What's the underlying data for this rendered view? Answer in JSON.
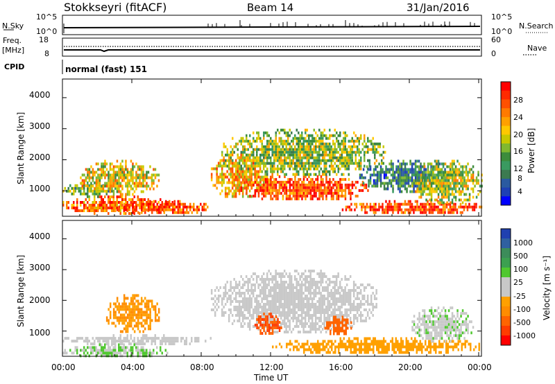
{
  "header": {
    "station": "Stokkseyri (fitACF)",
    "beam": "Beam 14",
    "date": "31/Jan/2016"
  },
  "noise_panel": {
    "left_label": "N.Sky",
    "right_label": "N.Search",
    "left_ticks": [
      "10^5",
      "10^0"
    ],
    "right_ticks": [
      "10^5",
      "10^0"
    ]
  },
  "freq_panel": {
    "left_label_1": "Freq.",
    "left_label_2": "[MHz]",
    "right_label": "Nave",
    "left_ticks": [
      "18",
      "8"
    ],
    "right_ticks": [
      "60",
      "0"
    ]
  },
  "cpid_panel": {
    "label": "CPID",
    "value": "normal (fast) 151"
  },
  "axes": {
    "ylabel": "Slant Range [km]",
    "xlabel": "Time UT",
    "yticks": [
      "1000",
      "2000",
      "3000",
      "4000"
    ],
    "xticks": [
      "00:00",
      "04:00",
      "08:00",
      "12:00",
      "16:00",
      "20:00",
      "00:00"
    ]
  },
  "colorbars": {
    "power": {
      "label": "Power [dB]",
      "ticks": [
        "28",
        "24",
        "20",
        "16",
        "12",
        "8",
        "4"
      ],
      "colors": [
        "#ff0000",
        "#ff2a00",
        "#ff5000",
        "#ff7a00",
        "#ffa000",
        "#ffc800",
        "#c8c800",
        "#80b830",
        "#3c8c3c",
        "#3a9a60",
        "#3c7a50",
        "#2a5aa0",
        "#1e40b4",
        "#0000ff"
      ]
    },
    "velocity": {
      "label": "Velocity [m s⁻¹]",
      "ticks": [
        "1000",
        "500",
        "100",
        "25",
        "-25",
        "-100",
        "-500",
        "-1000"
      ],
      "colors": [
        "#2040b0",
        "#3060a0",
        "#3c8c5a",
        "#3ca050",
        "#50c830",
        "#c8c8c8",
        "#c8c8c8",
        "#ffa000",
        "#ff8c00",
        "#ff6400",
        "#ff3c00",
        "#ff0000"
      ]
    }
  },
  "chart_data": [
    {
      "type": "heatmap",
      "panel": "power",
      "x_unit": "hours UT",
      "y_unit": "km",
      "xlim": [
        0,
        24
      ],
      "ylim": [
        180,
        4600
      ],
      "blobs": [
        {
          "t0": 0.0,
          "t1": 6.5,
          "r0": 300,
          "r1": 850,
          "value": 26
        },
        {
          "t0": 0.0,
          "t1": 3.0,
          "r0": 850,
          "r1": 1300,
          "value": 14
        },
        {
          "t0": 1.0,
          "t1": 5.5,
          "r0": 900,
          "r1": 2000,
          "value": 20
        },
        {
          "t0": 3.0,
          "t1": 8.5,
          "r0": 300,
          "r1": 700,
          "value": 28
        },
        {
          "t0": 8.5,
          "t1": 12.0,
          "r0": 800,
          "r1": 2200,
          "value": 22
        },
        {
          "t0": 10.0,
          "t1": 17.5,
          "r0": 700,
          "r1": 1500,
          "value": 28
        },
        {
          "t0": 9.0,
          "t1": 18.5,
          "r0": 1500,
          "r1": 3000,
          "value": 16
        },
        {
          "t0": 16.0,
          "t1": 24.0,
          "r0": 300,
          "r1": 700,
          "value": 28
        },
        {
          "t0": 17.0,
          "t1": 22.5,
          "r0": 1000,
          "r1": 2000,
          "value": 10
        },
        {
          "t0": 20.0,
          "t1": 24.0,
          "r0": 600,
          "r1": 2000,
          "value": 18
        }
      ]
    },
    {
      "type": "heatmap",
      "panel": "velocity",
      "x_unit": "hours UT",
      "y_unit": "km",
      "xlim": [
        0,
        24
      ],
      "ylim": [
        180,
        4600
      ],
      "blobs": [
        {
          "t0": 0.0,
          "t1": 8.5,
          "r0": 600,
          "r1": 900,
          "value": 0
        },
        {
          "t0": 0.0,
          "t1": 6.0,
          "r0": 200,
          "r1": 600,
          "value": 200
        },
        {
          "t0": 2.5,
          "t1": 5.5,
          "r0": 1000,
          "r1": 2200,
          "value": -400
        },
        {
          "t0": 8.5,
          "t1": 18.0,
          "r0": 1000,
          "r1": 3000,
          "value": 0
        },
        {
          "t0": 11.0,
          "t1": 12.5,
          "r0": 900,
          "r1": 1600,
          "value": -800
        },
        {
          "t0": 15.0,
          "t1": 16.5,
          "r0": 900,
          "r1": 1500,
          "value": -700
        },
        {
          "t0": 12.0,
          "t1": 24.0,
          "r0": 300,
          "r1": 800,
          "value": -300
        },
        {
          "t0": 20.0,
          "t1": 23.5,
          "r0": 700,
          "r1": 1800,
          "value": 150
        }
      ]
    }
  ]
}
